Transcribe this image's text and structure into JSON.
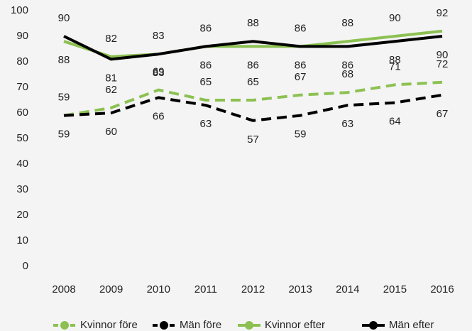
{
  "chart_data": {
    "type": "line",
    "categories": [
      "2008",
      "2009",
      "2010",
      "2011",
      "2012",
      "2013",
      "2014",
      "2015",
      "2016"
    ],
    "series": [
      {
        "name": "Kvinnor före",
        "color": "#8cc152",
        "dashed": true,
        "values": [
          59,
          62,
          69,
          65,
          65,
          67,
          68,
          71,
          72
        ]
      },
      {
        "name": "Män före",
        "color": "#000000",
        "dashed": true,
        "values": [
          59,
          60,
          66,
          63,
          57,
          59,
          63,
          64,
          67
        ]
      },
      {
        "name": "Kvinnor efter",
        "color": "#8cc152",
        "dashed": false,
        "values": [
          88,
          82,
          83,
          86,
          86,
          86,
          88,
          90,
          92
        ]
      },
      {
        "name": "Män efter",
        "color": "#000000",
        "dashed": false,
        "values": [
          90,
          81,
          83,
          86,
          88,
          86,
          86,
          88,
          90
        ]
      }
    ],
    "ylim": [
      0,
      100
    ],
    "yticks": [
      0,
      10,
      20,
      30,
      40,
      50,
      60,
      70,
      80,
      90,
      100
    ],
    "legend": "bottom",
    "grid": false
  }
}
